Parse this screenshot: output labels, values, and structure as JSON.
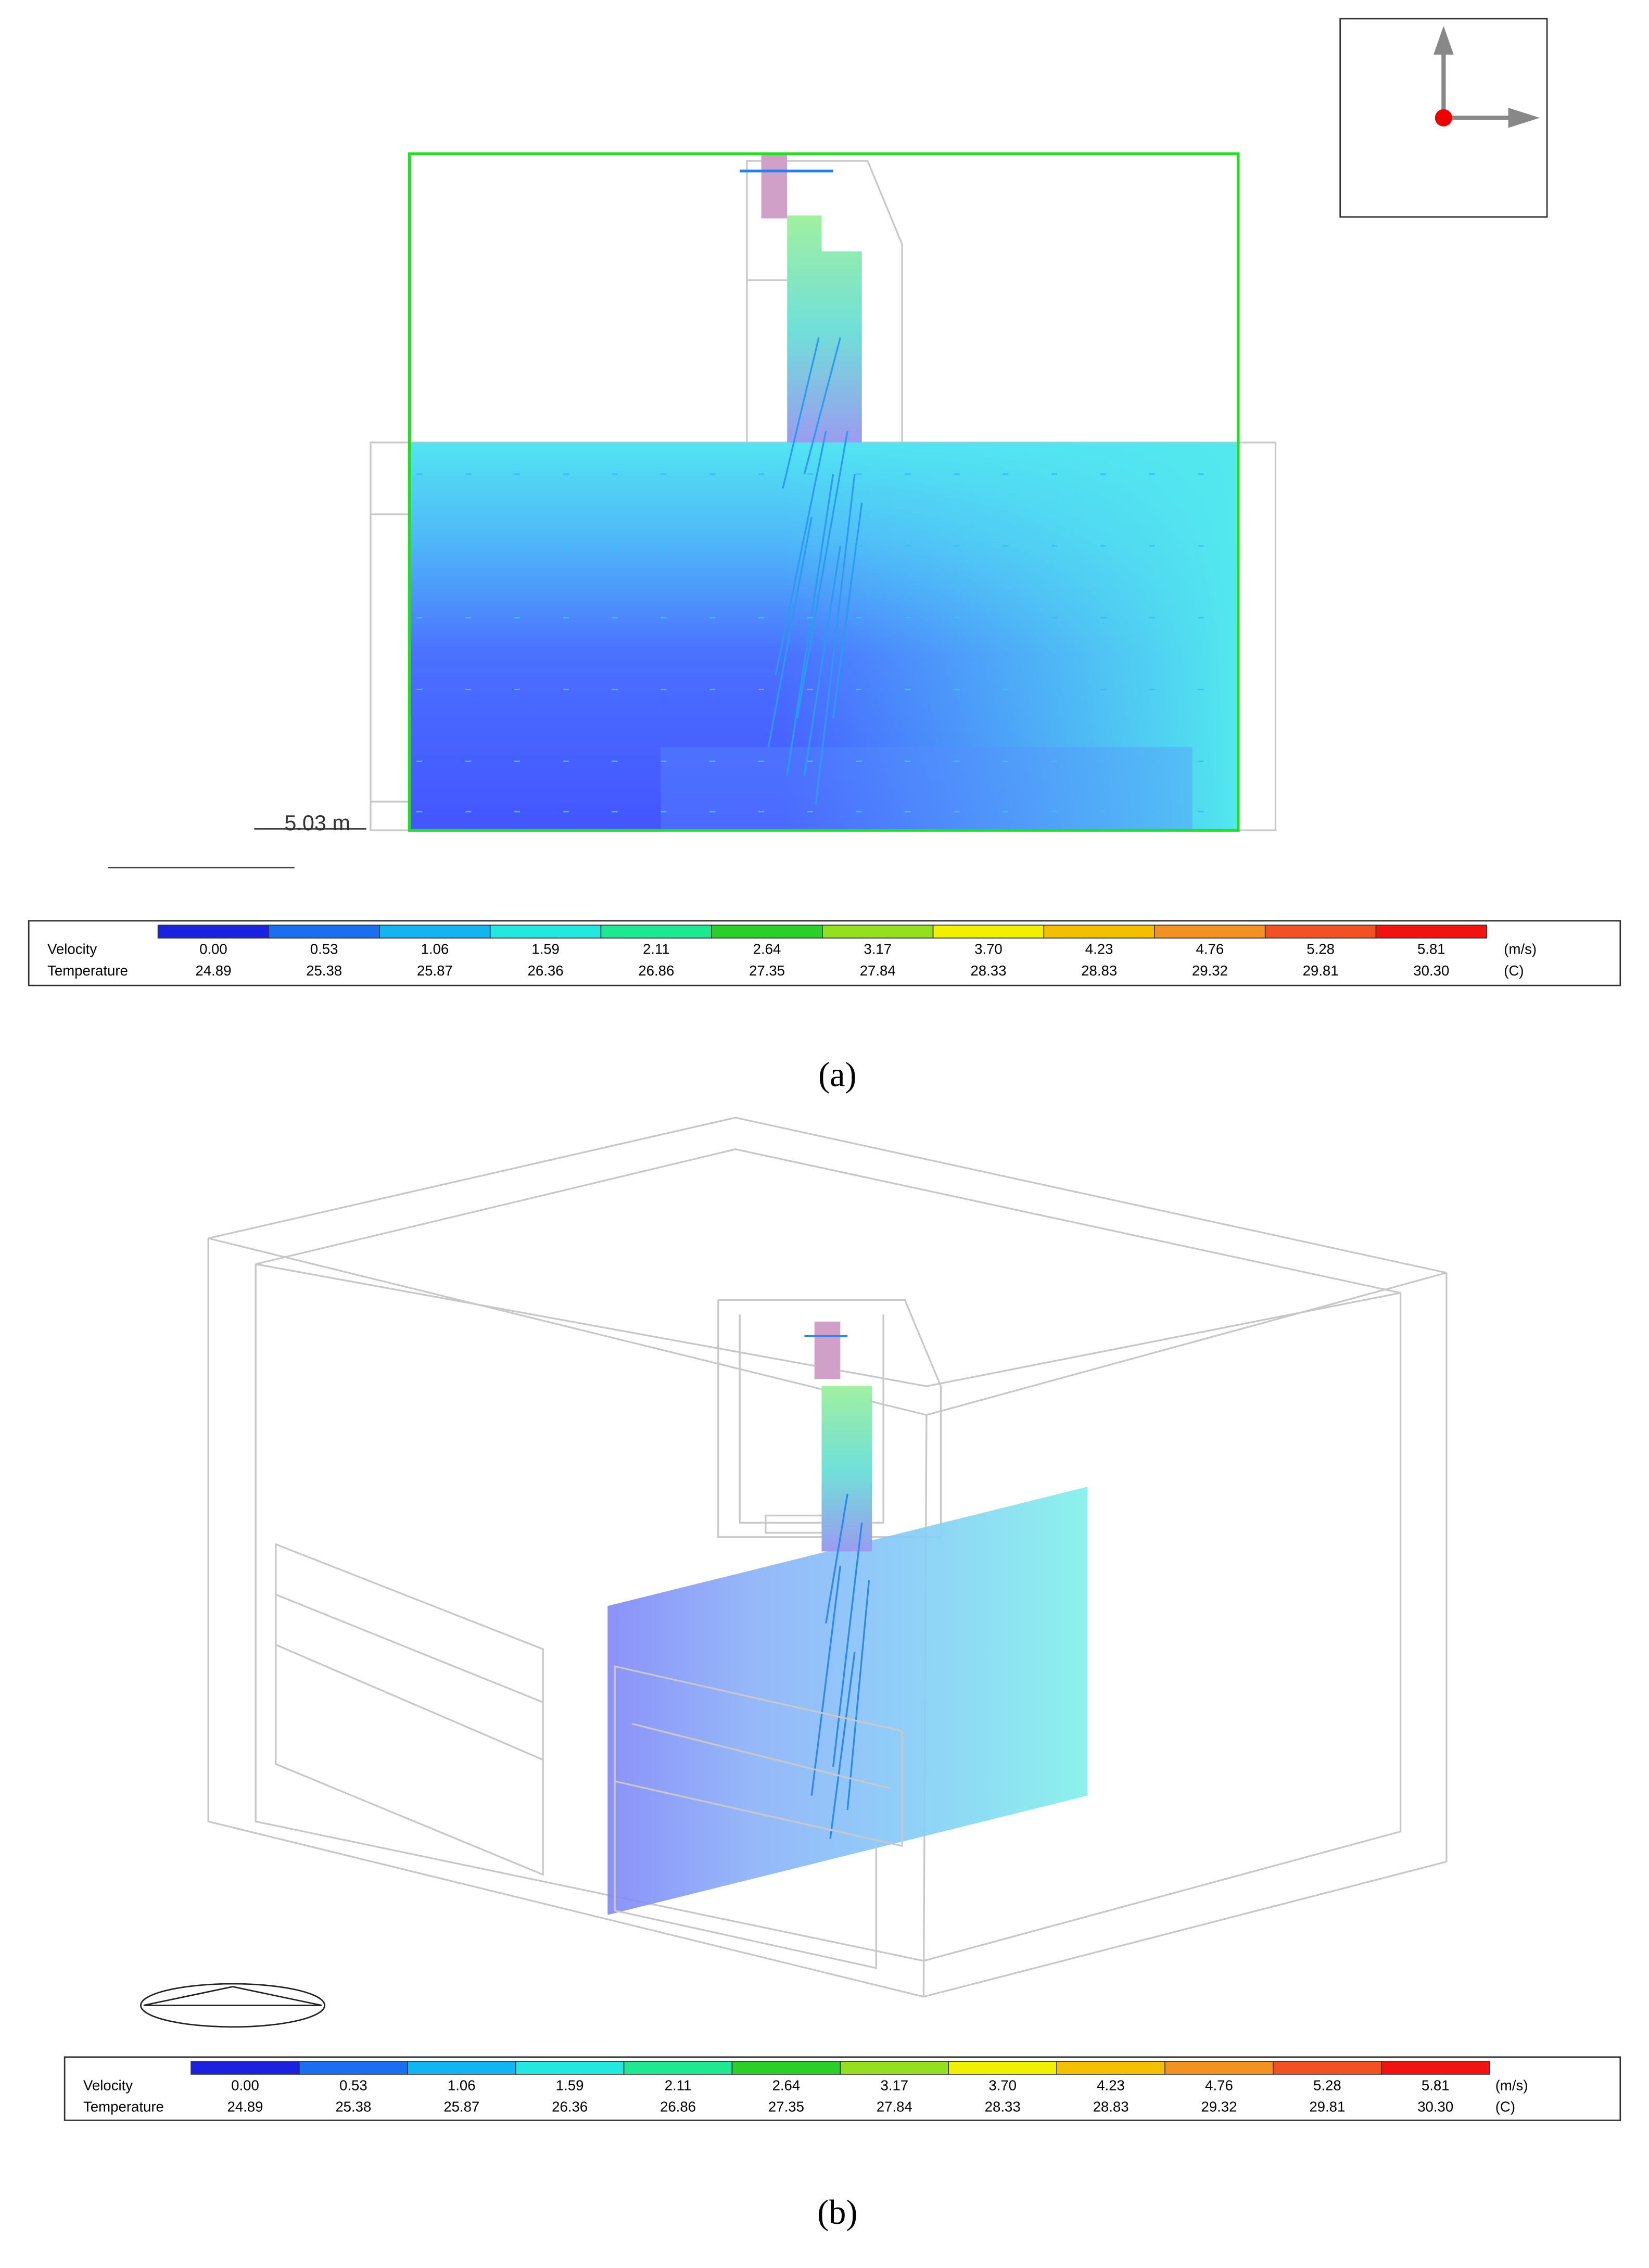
{
  "panels": [
    {
      "caption": "(a)",
      "scale_label": "5.03 m",
      "legend": {
        "colors": [
          "#1a22e0",
          "#1a6ef0",
          "#12b4f2",
          "#22e8e0",
          "#1ee890",
          "#2ad028",
          "#94e020",
          "#f0f000",
          "#f2c000",
          "#f29222",
          "#f25222",
          "#f21212"
        ],
        "rows": [
          {
            "label": "Velocity",
            "values": [
              "0.00",
              "0.53",
              "1.06",
              "1.59",
              "2.11",
              "2.64",
              "3.17",
              "3.70",
              "4.23",
              "4.76",
              "5.28",
              "5.81"
            ],
            "unit": "(m/s)"
          },
          {
            "label": "Temperature",
            "values": [
              "24.89",
              "25.38",
              "25.87",
              "26.36",
              "26.86",
              "27.35",
              "27.84",
              "28.33",
              "28.83",
              "29.32",
              "29.81",
              "30.30"
            ],
            "unit": "(C)"
          }
        ]
      }
    },
    {
      "caption": "(b)",
      "legend": {
        "colors": [
          "#1a22e0",
          "#1a6ef0",
          "#12b4f2",
          "#22e8e0",
          "#1ee890",
          "#2ad028",
          "#94e020",
          "#f0f000",
          "#f2c000",
          "#f29222",
          "#f25222",
          "#f21212"
        ],
        "rows": [
          {
            "label": "Velocity",
            "values": [
              "0.00",
              "0.53",
              "1.06",
              "1.59",
              "2.11",
              "2.64",
              "3.17",
              "3.70",
              "4.23",
              "4.76",
              "5.28",
              "5.81"
            ],
            "unit": "(m/s)"
          },
          {
            "label": "Temperature",
            "values": [
              "24.89",
              "25.38",
              "25.87",
              "26.36",
              "26.86",
              "27.35",
              "27.84",
              "28.33",
              "28.83",
              "29.32",
              "29.81",
              "30.30"
            ],
            "unit": "(C)"
          }
        ]
      }
    }
  ]
}
